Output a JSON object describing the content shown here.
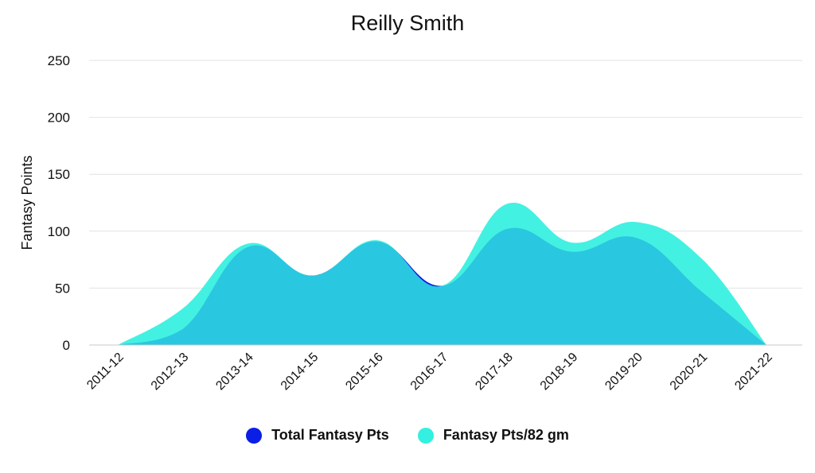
{
  "chart_data": {
    "type": "area",
    "title": "Reilly Smith",
    "xlabel": "",
    "ylabel": "Fantasy Points",
    "ylim": [
      0,
      250
    ],
    "yticks": [
      0,
      50,
      100,
      150,
      200,
      250
    ],
    "categories": [
      "2011-12",
      "2012-13",
      "2013-14",
      "2014-15",
      "2015-16",
      "2016-17",
      "2017-18",
      "2018-19",
      "2019-20",
      "2020-21",
      "2021-22"
    ],
    "series": [
      {
        "name": "Total Fantasy Pts",
        "color": "#0a1ee6",
        "values": [
          0,
          14,
          86,
          61,
          91,
          52,
          102,
          82,
          94,
          47,
          0
        ]
      },
      {
        "name": "Fantasy Pts/82 gm",
        "color": "#33f0e0",
        "values": [
          0,
          32,
          89,
          61,
          92,
          52,
          124,
          90,
          108,
          76,
          0
        ]
      }
    ],
    "grid": true,
    "legend_position": "bottom"
  }
}
